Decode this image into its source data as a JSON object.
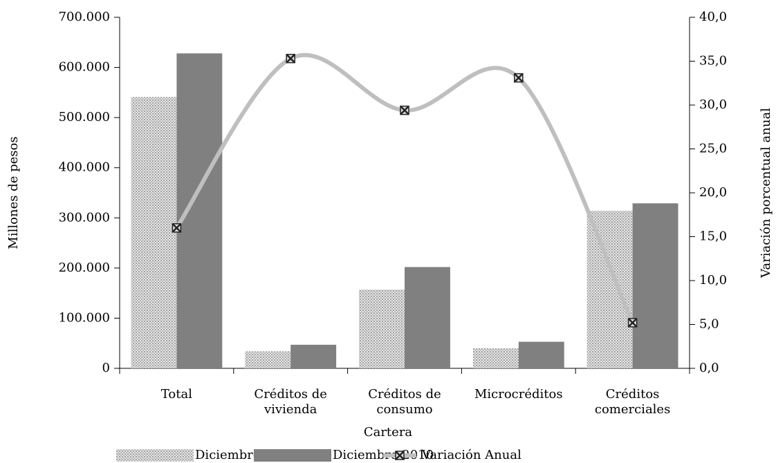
{
  "chart_data": {
    "type": "bar",
    "x_label": "Cartera",
    "y_label": "Millones de pesos",
    "y2_label": "Variación porcentual anual",
    "categories": [
      "Total",
      "Créditos de vivienda",
      "Créditos de consumo",
      "Microcréditos",
      "Créditos comerciales"
    ],
    "series": [
      {
        "name": "Diciembre 2009",
        "color": "#b0b0b0",
        "values": [
          541000,
          34000,
          157000,
          40000,
          314000
        ]
      },
      {
        "name": "Diciembre 2010",
        "color": "#808080",
        "values": [
          628000,
          47000,
          202000,
          53000,
          329000
        ]
      },
      {
        "name": "Variación Anual",
        "color": "#bfbfbf",
        "type": "line",
        "axis": "y2",
        "values": [
          16.0,
          35.3,
          29.4,
          33.1,
          5.2
        ]
      }
    ],
    "ylim": [
      0,
      700000
    ],
    "yticks": [
      0,
      {
        "value": 100000,
        "label": "100.000"
      },
      {
        "value": 200000,
        "label": "200.000"
      },
      {
        "value": 300000,
        "label": "300.000"
      },
      {
        "value": 400000,
        "label": "400.000"
      },
      {
        "value": 500000,
        "label": "500.000"
      },
      {
        "value": 600000,
        "label": "600.000"
      },
      {
        "value": 700000,
        "label": "700.000"
      }
    ],
    "y2lim": [
      0,
      40
    ],
    "y2ticks": [
      {
        "value": 0,
        "label": "0,0"
      },
      {
        "value": 5,
        "label": "5,0"
      },
      {
        "value": 10,
        "label": "10,0"
      },
      {
        "value": 15,
        "label": "15,0"
      },
      {
        "value": 20,
        "label": "20,0"
      },
      {
        "value": 25,
        "label": "25,0"
      },
      {
        "value": 30,
        "label": "30,0"
      },
      {
        "value": 35,
        "label": "35,0"
      },
      {
        "value": 40,
        "label": "40,0"
      }
    ],
    "legend": "bottom",
    "grid": false
  }
}
